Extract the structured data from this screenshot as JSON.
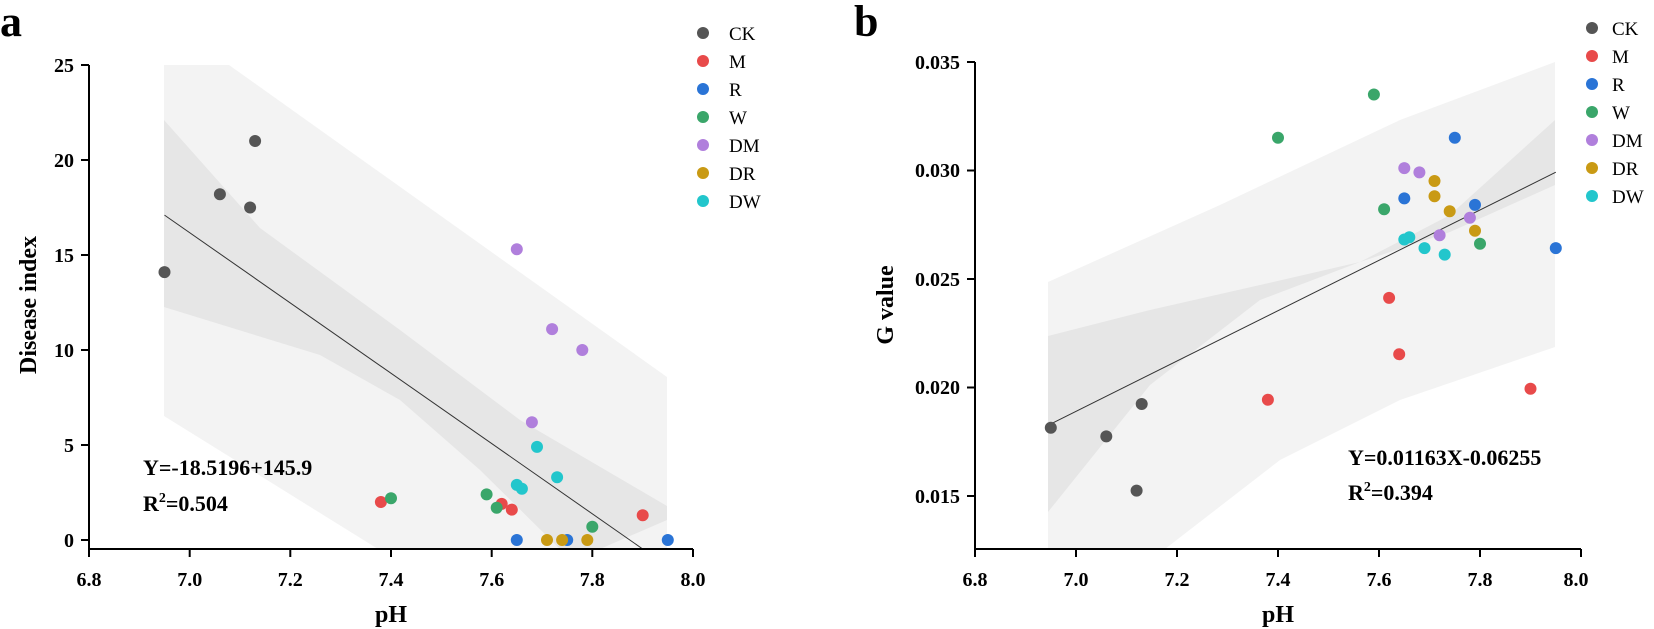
{
  "colors": {
    "CK": "#555555",
    "M": "#e84a4a",
    "R": "#2a74d6",
    "W": "#3aa66a",
    "DM": "#b07fdc",
    "DR": "#c99a14",
    "DW": "#22c6cc",
    "pred_band": "#f3f3f3",
    "conf_band": "#e6e6e6",
    "fit_line": "#333333"
  },
  "legend": [
    "CK",
    "M",
    "R",
    "W",
    "DM",
    "DR",
    "DW"
  ],
  "chart_data": [
    {
      "panel": "a",
      "type": "scatter",
      "xlabel": "pH",
      "ylabel": "Disease index",
      "xlim": [
        6.8,
        8.0
      ],
      "ylim": [
        0,
        25
      ],
      "xticks": [
        "6.8",
        "7.0",
        "7.2",
        "7.4",
        "7.6",
        "7.8",
        "8.0"
      ],
      "yticks": [
        "0",
        "5",
        "10",
        "15",
        "20",
        "25"
      ],
      "equation": "Y=-18.5196+145.9",
      "r2_prefix": "R",
      "r2_sup": "2",
      "r2_value": "=0.504",
      "fit": {
        "slope": -18.5196,
        "x_range": [
          6.95,
          7.9
        ],
        "y_at_start": 17.1
      },
      "series": [
        {
          "name": "CK",
          "points": [
            [
              6.95,
              14.1
            ],
            [
              7.06,
              18.2
            ],
            [
              7.12,
              17.5
            ],
            [
              7.13,
              21.0
            ]
          ]
        },
        {
          "name": "M",
          "points": [
            [
              7.38,
              2.0
            ],
            [
              7.62,
              1.9
            ],
            [
              7.64,
              1.6
            ],
            [
              7.9,
              1.3
            ]
          ]
        },
        {
          "name": "R",
          "points": [
            [
              7.65,
              0.0
            ],
            [
              7.75,
              0.0
            ],
            [
              7.95,
              0.0
            ]
          ]
        },
        {
          "name": "W",
          "points": [
            [
              7.4,
              2.2
            ],
            [
              7.59,
              2.4
            ],
            [
              7.61,
              1.7
            ],
            [
              7.8,
              0.7
            ]
          ]
        },
        {
          "name": "DM",
          "points": [
            [
              7.65,
              15.3
            ],
            [
              7.68,
              6.2
            ],
            [
              7.72,
              11.1
            ],
            [
              7.78,
              10.0
            ]
          ]
        },
        {
          "name": "DR",
          "points": [
            [
              7.71,
              0.0
            ],
            [
              7.74,
              0.0
            ],
            [
              7.79,
              0.0
            ]
          ]
        },
        {
          "name": "DW",
          "points": [
            [
              7.65,
              2.9
            ],
            [
              7.66,
              2.7
            ],
            [
              7.69,
              4.9
            ],
            [
              7.73,
              3.3
            ]
          ]
        }
      ]
    },
    {
      "panel": "b",
      "type": "scatter",
      "xlabel": "pH",
      "ylabel": "G value",
      "xlim": [
        6.8,
        8.0
      ],
      "ylim": [
        0.0125,
        0.035
      ],
      "xticks": [
        "6.8",
        "7.0",
        "7.2",
        "7.4",
        "7.6",
        "7.8",
        "8.0"
      ],
      "yticks": [
        "0.015",
        "0.020",
        "0.025",
        "0.030",
        "0.035"
      ],
      "equation": "Y=0.01163X-0.06255",
      "r2_prefix": "R",
      "r2_sup": "2",
      "r2_value": "=0.394",
      "fit": {
        "slope": 0.01163,
        "intercept": -0.06255,
        "x_range": [
          6.95,
          7.95
        ]
      },
      "series": [
        {
          "name": "CK",
          "points": [
            [
              6.95,
              0.0181
            ],
            [
              7.06,
              0.0177
            ],
            [
              7.12,
              0.0152
            ],
            [
              7.13,
              0.0192
            ]
          ]
        },
        {
          "name": "M",
          "points": [
            [
              7.38,
              0.0194
            ],
            [
              7.62,
              0.0241
            ],
            [
              7.64,
              0.0215
            ],
            [
              7.9,
              0.0199
            ]
          ]
        },
        {
          "name": "R",
          "points": [
            [
              7.65,
              0.0287
            ],
            [
              7.75,
              0.0315
            ],
            [
              7.79,
              0.0284
            ],
            [
              7.95,
              0.0264
            ]
          ]
        },
        {
          "name": "W",
          "points": [
            [
              7.4,
              0.0315
            ],
            [
              7.59,
              0.0335
            ],
            [
              7.61,
              0.0282
            ],
            [
              7.8,
              0.0266
            ]
          ]
        },
        {
          "name": "DM",
          "points": [
            [
              7.65,
              0.0301
            ],
            [
              7.68,
              0.0299
            ],
            [
              7.72,
              0.027
            ],
            [
              7.78,
              0.0278
            ]
          ]
        },
        {
          "name": "DR",
          "points": [
            [
              7.71,
              0.0295
            ],
            [
              7.71,
              0.0288
            ],
            [
              7.74,
              0.0281
            ],
            [
              7.79,
              0.0272
            ]
          ]
        },
        {
          "name": "DW",
          "points": [
            [
              7.65,
              0.0268
            ],
            [
              7.66,
              0.0269
            ],
            [
              7.69,
              0.0264
            ],
            [
              7.73,
              0.0261
            ]
          ]
        }
      ]
    }
  ]
}
